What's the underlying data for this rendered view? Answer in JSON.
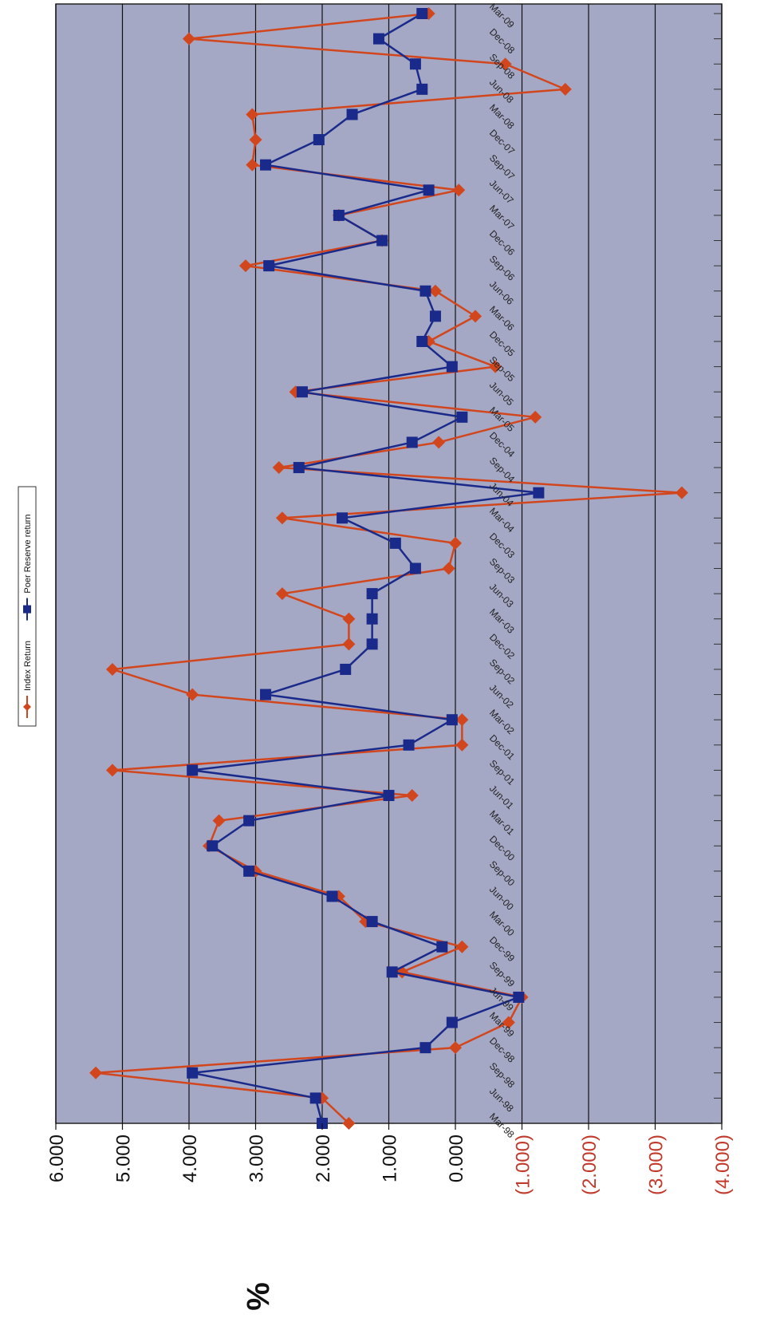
{
  "chart_data": {
    "type": "line",
    "ylabel": "%",
    "ylim": [
      -4,
      6
    ],
    "yticks": [
      6,
      5,
      4,
      3,
      2,
      1,
      0,
      -1,
      -2,
      -3,
      -4
    ],
    "ytick_labels": [
      "6.000",
      "5.000",
      "4.000",
      "3.000",
      "2.000",
      "1.000",
      "0.000",
      "(1.000)",
      "(2.000)",
      "(3.000)",
      "(4.000)"
    ],
    "negative_tick_color": "#c0392b",
    "positive_tick_color": "#111111",
    "grid": true,
    "legend_position": "top",
    "categories": [
      "Mar-98",
      "Jun-98",
      "Sep-98",
      "Dec-98",
      "Mar-99",
      "Jun-99",
      "Sep-99",
      "Dec-99",
      "Mar-00",
      "Jun-00",
      "Sep-00",
      "Dec-00",
      "Mar-01",
      "Jun-01",
      "Sep-01",
      "Dec-01",
      "Mar-02",
      "Jun-02",
      "Sep-02",
      "Dec-02",
      "Mar-03",
      "Jun-03",
      "Sep-03",
      "Dec-03",
      "Mar-04",
      "Jun-04",
      "Sep-04",
      "Dec-04",
      "Mar-05",
      "Jun-05",
      "Sep-05",
      "Dec-05",
      "Mar-06",
      "Jun-06",
      "Sep-06",
      "Dec-06",
      "Mar-07",
      "Jun-07",
      "Sep-07",
      "Dec-07",
      "Mar-08",
      "Jun-08",
      "Sep-08",
      "Dec-08",
      "Mar-09"
    ],
    "series": [
      {
        "name": "Index Return",
        "color": "#d2461e",
        "marker": "diamond",
        "values": [
          1.6,
          2.0,
          5.4,
          0.0,
          -0.8,
          -1.0,
          0.8,
          -0.1,
          1.35,
          1.75,
          3.0,
          3.7,
          3.55,
          0.65,
          5.15,
          -0.1,
          -0.1,
          3.95,
          5.15,
          1.6,
          1.6,
          2.6,
          0.1,
          0.0,
          2.6,
          -3.4,
          2.65,
          0.25,
          -1.2,
          2.4,
          -0.6,
          0.4,
          -0.3,
          0.3,
          3.15,
          1.1,
          1.75,
          -0.05,
          3.05,
          3.0,
          3.05,
          -1.65,
          -0.75,
          4.0,
          0.4
        ]
      },
      {
        "name": "Poer Reserve return",
        "color": "#1a2a8a",
        "marker": "square",
        "values": [
          2.0,
          2.1,
          3.95,
          0.45,
          0.05,
          -0.95,
          0.95,
          0.2,
          1.25,
          1.85,
          3.1,
          3.65,
          3.1,
          1.0,
          3.95,
          0.7,
          0.05,
          2.85,
          1.65,
          1.25,
          1.25,
          1.25,
          0.6,
          0.9,
          1.7,
          -1.25,
          2.35,
          0.65,
          -0.1,
          2.3,
          0.05,
          0.5,
          0.3,
          0.45,
          2.8,
          1.1,
          1.75,
          0.4,
          2.85,
          2.05,
          1.55,
          0.5,
          0.6,
          1.15,
          0.5
        ]
      }
    ]
  }
}
